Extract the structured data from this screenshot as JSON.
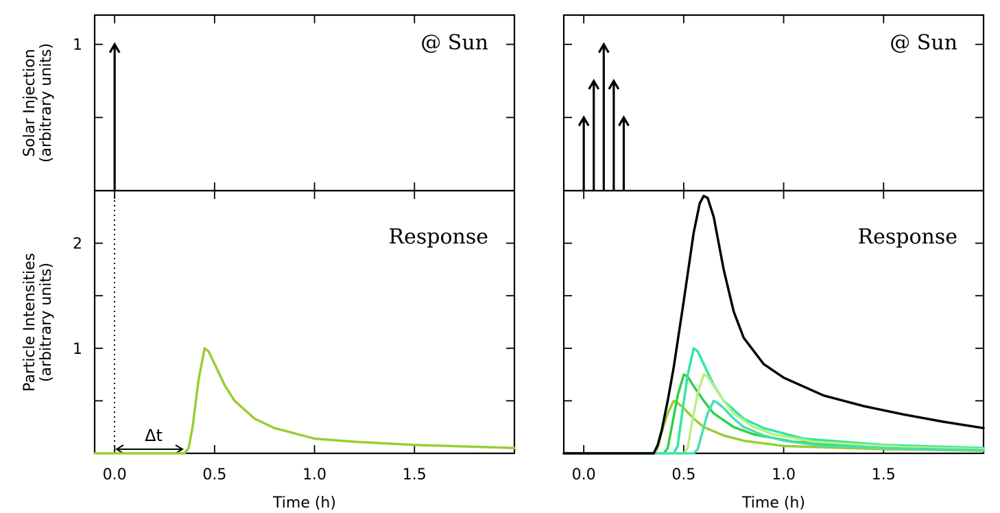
{
  "chart_data": [
    {
      "panel": "left",
      "type": "line",
      "xlabel": "Time (h)",
      "xlim": [
        -0.1,
        2.0
      ],
      "x_ticks": [
        "0.0",
        "0.5",
        "1.0",
        "1.5"
      ],
      "top": {
        "annotation": "@ Sun",
        "ylabel": [
          "Solar Injection",
          "(arbitrary units)"
        ],
        "ylim": [
          0,
          1.2
        ],
        "y_ticks": [
          "1",
          ""
        ],
        "injections": [
          {
            "t": 0.0,
            "amp": 1.0
          }
        ]
      },
      "bottom": {
        "annotation": "Response",
        "ylabel": [
          "Particle Intensities",
          "(arbitrary units)"
        ],
        "ylim": [
          0,
          2.5
        ],
        "y_ticks": [
          "",
          "1",
          "",
          "2",
          ""
        ],
        "delay_label": "Δt",
        "series": [
          {
            "color": "#9acd32",
            "points": [
              [
                -0.1,
                0
              ],
              [
                0.35,
                0
              ],
              [
                0.37,
                0.05
              ],
              [
                0.39,
                0.25
              ],
              [
                0.42,
                0.7
              ],
              [
                0.45,
                1.0
              ],
              [
                0.47,
                0.97
              ],
              [
                0.5,
                0.85
              ],
              [
                0.55,
                0.65
              ],
              [
                0.6,
                0.5
              ],
              [
                0.7,
                0.33
              ],
              [
                0.8,
                0.24
              ],
              [
                1.0,
                0.14
              ],
              [
                1.2,
                0.11
              ],
              [
                1.5,
                0.08
              ],
              [
                2.0,
                0.05
              ]
            ]
          }
        ]
      }
    },
    {
      "panel": "right",
      "type": "line",
      "xlabel": "Time (h)",
      "xlim": [
        -0.1,
        2.0
      ],
      "x_ticks": [
        "0.0",
        "0.5",
        "1.0",
        "1.5"
      ],
      "top": {
        "annotation": "@ Sun",
        "ylabel": [],
        "ylim": [
          0,
          1.2
        ],
        "y_ticks": [
          "",
          ""
        ],
        "injections": [
          {
            "t": 0.0,
            "amp": 0.5
          },
          {
            "t": 0.05,
            "amp": 0.75
          },
          {
            "t": 0.1,
            "amp": 1.0
          },
          {
            "t": 0.15,
            "amp": 0.75
          },
          {
            "t": 0.2,
            "amp": 0.5
          }
        ]
      },
      "bottom": {
        "annotation": "Response",
        "ylabel": [],
        "ylim": [
          0,
          2.5
        ],
        "y_ticks": [
          "",
          "",
          "",
          "",
          ""
        ],
        "series": [
          {
            "color": "#9acd32",
            "points": [
              [
                0.35,
                0
              ],
              [
                0.37,
                0.05
              ],
              [
                0.39,
                0.2
              ],
              [
                0.42,
                0.38
              ],
              [
                0.45,
                0.5
              ],
              [
                0.47,
                0.48
              ],
              [
                0.5,
                0.43
              ],
              [
                0.55,
                0.33
              ],
              [
                0.6,
                0.25
              ],
              [
                0.7,
                0.17
              ],
              [
                0.8,
                0.12
              ],
              [
                1.0,
                0.07
              ],
              [
                1.5,
                0.04
              ],
              [
                2.0,
                0.025
              ]
            ]
          },
          {
            "color": "#2ed04a",
            "points": [
              [
                0.4,
                0
              ],
              [
                0.42,
                0.05
              ],
              [
                0.44,
                0.25
              ],
              [
                0.47,
                0.55
              ],
              [
                0.5,
                0.75
              ],
              [
                0.52,
                0.73
              ],
              [
                0.55,
                0.64
              ],
              [
                0.6,
                0.5
              ],
              [
                0.65,
                0.38
              ],
              [
                0.75,
                0.25
              ],
              [
                0.85,
                0.18
              ],
              [
                1.05,
                0.11
              ],
              [
                1.5,
                0.06
              ],
              [
                2.0,
                0.035
              ]
            ]
          },
          {
            "color": "#2ee8a0",
            "points": [
              [
                0.45,
                0
              ],
              [
                0.47,
                0.07
              ],
              [
                0.49,
                0.35
              ],
              [
                0.52,
                0.75
              ],
              [
                0.55,
                1.0
              ],
              [
                0.57,
                0.97
              ],
              [
                0.6,
                0.85
              ],
              [
                0.65,
                0.65
              ],
              [
                0.7,
                0.5
              ],
              [
                0.8,
                0.33
              ],
              [
                0.9,
                0.24
              ],
              [
                1.1,
                0.14
              ],
              [
                1.5,
                0.08
              ],
              [
                2.0,
                0.05
              ]
            ]
          },
          {
            "color": "#b8ef86",
            "points": [
              [
                0.5,
                0
              ],
              [
                0.52,
                0.05
              ],
              [
                0.54,
                0.28
              ],
              [
                0.57,
                0.57
              ],
              [
                0.6,
                0.75
              ],
              [
                0.62,
                0.73
              ],
              [
                0.65,
                0.64
              ],
              [
                0.7,
                0.5
              ],
              [
                0.75,
                0.38
              ],
              [
                0.85,
                0.25
              ],
              [
                0.95,
                0.18
              ],
              [
                1.15,
                0.11
              ],
              [
                1.6,
                0.06
              ],
              [
                2.0,
                0.04
              ]
            ]
          },
          {
            "color": "#46dfb0",
            "points": [
              [
                0.55,
                0
              ],
              [
                0.57,
                0.04
              ],
              [
                0.59,
                0.18
              ],
              [
                0.62,
                0.38
              ],
              [
                0.65,
                0.5
              ],
              [
                0.67,
                0.48
              ],
              [
                0.7,
                0.43
              ],
              [
                0.75,
                0.33
              ],
              [
                0.8,
                0.25
              ],
              [
                0.9,
                0.17
              ],
              [
                1.0,
                0.12
              ],
              [
                1.2,
                0.07
              ],
              [
                1.6,
                0.045
              ],
              [
                2.0,
                0.03
              ]
            ]
          },
          {
            "color": "#000000",
            "points": [
              [
                -0.1,
                0
              ],
              [
                0.35,
                0
              ],
              [
                0.37,
                0.08
              ],
              [
                0.39,
                0.22
              ],
              [
                0.42,
                0.5
              ],
              [
                0.45,
                0.82
              ],
              [
                0.5,
                1.45
              ],
              [
                0.55,
                2.1
              ],
              [
                0.58,
                2.38
              ],
              [
                0.6,
                2.45
              ],
              [
                0.62,
                2.43
              ],
              [
                0.65,
                2.25
              ],
              [
                0.7,
                1.75
              ],
              [
                0.75,
                1.35
              ],
              [
                0.8,
                1.1
              ],
              [
                0.9,
                0.85
              ],
              [
                1.0,
                0.72
              ],
              [
                1.2,
                0.55
              ],
              [
                1.4,
                0.45
              ],
              [
                1.6,
                0.37
              ],
              [
                1.8,
                0.3
              ],
              [
                2.0,
                0.24
              ]
            ]
          }
        ]
      }
    }
  ]
}
